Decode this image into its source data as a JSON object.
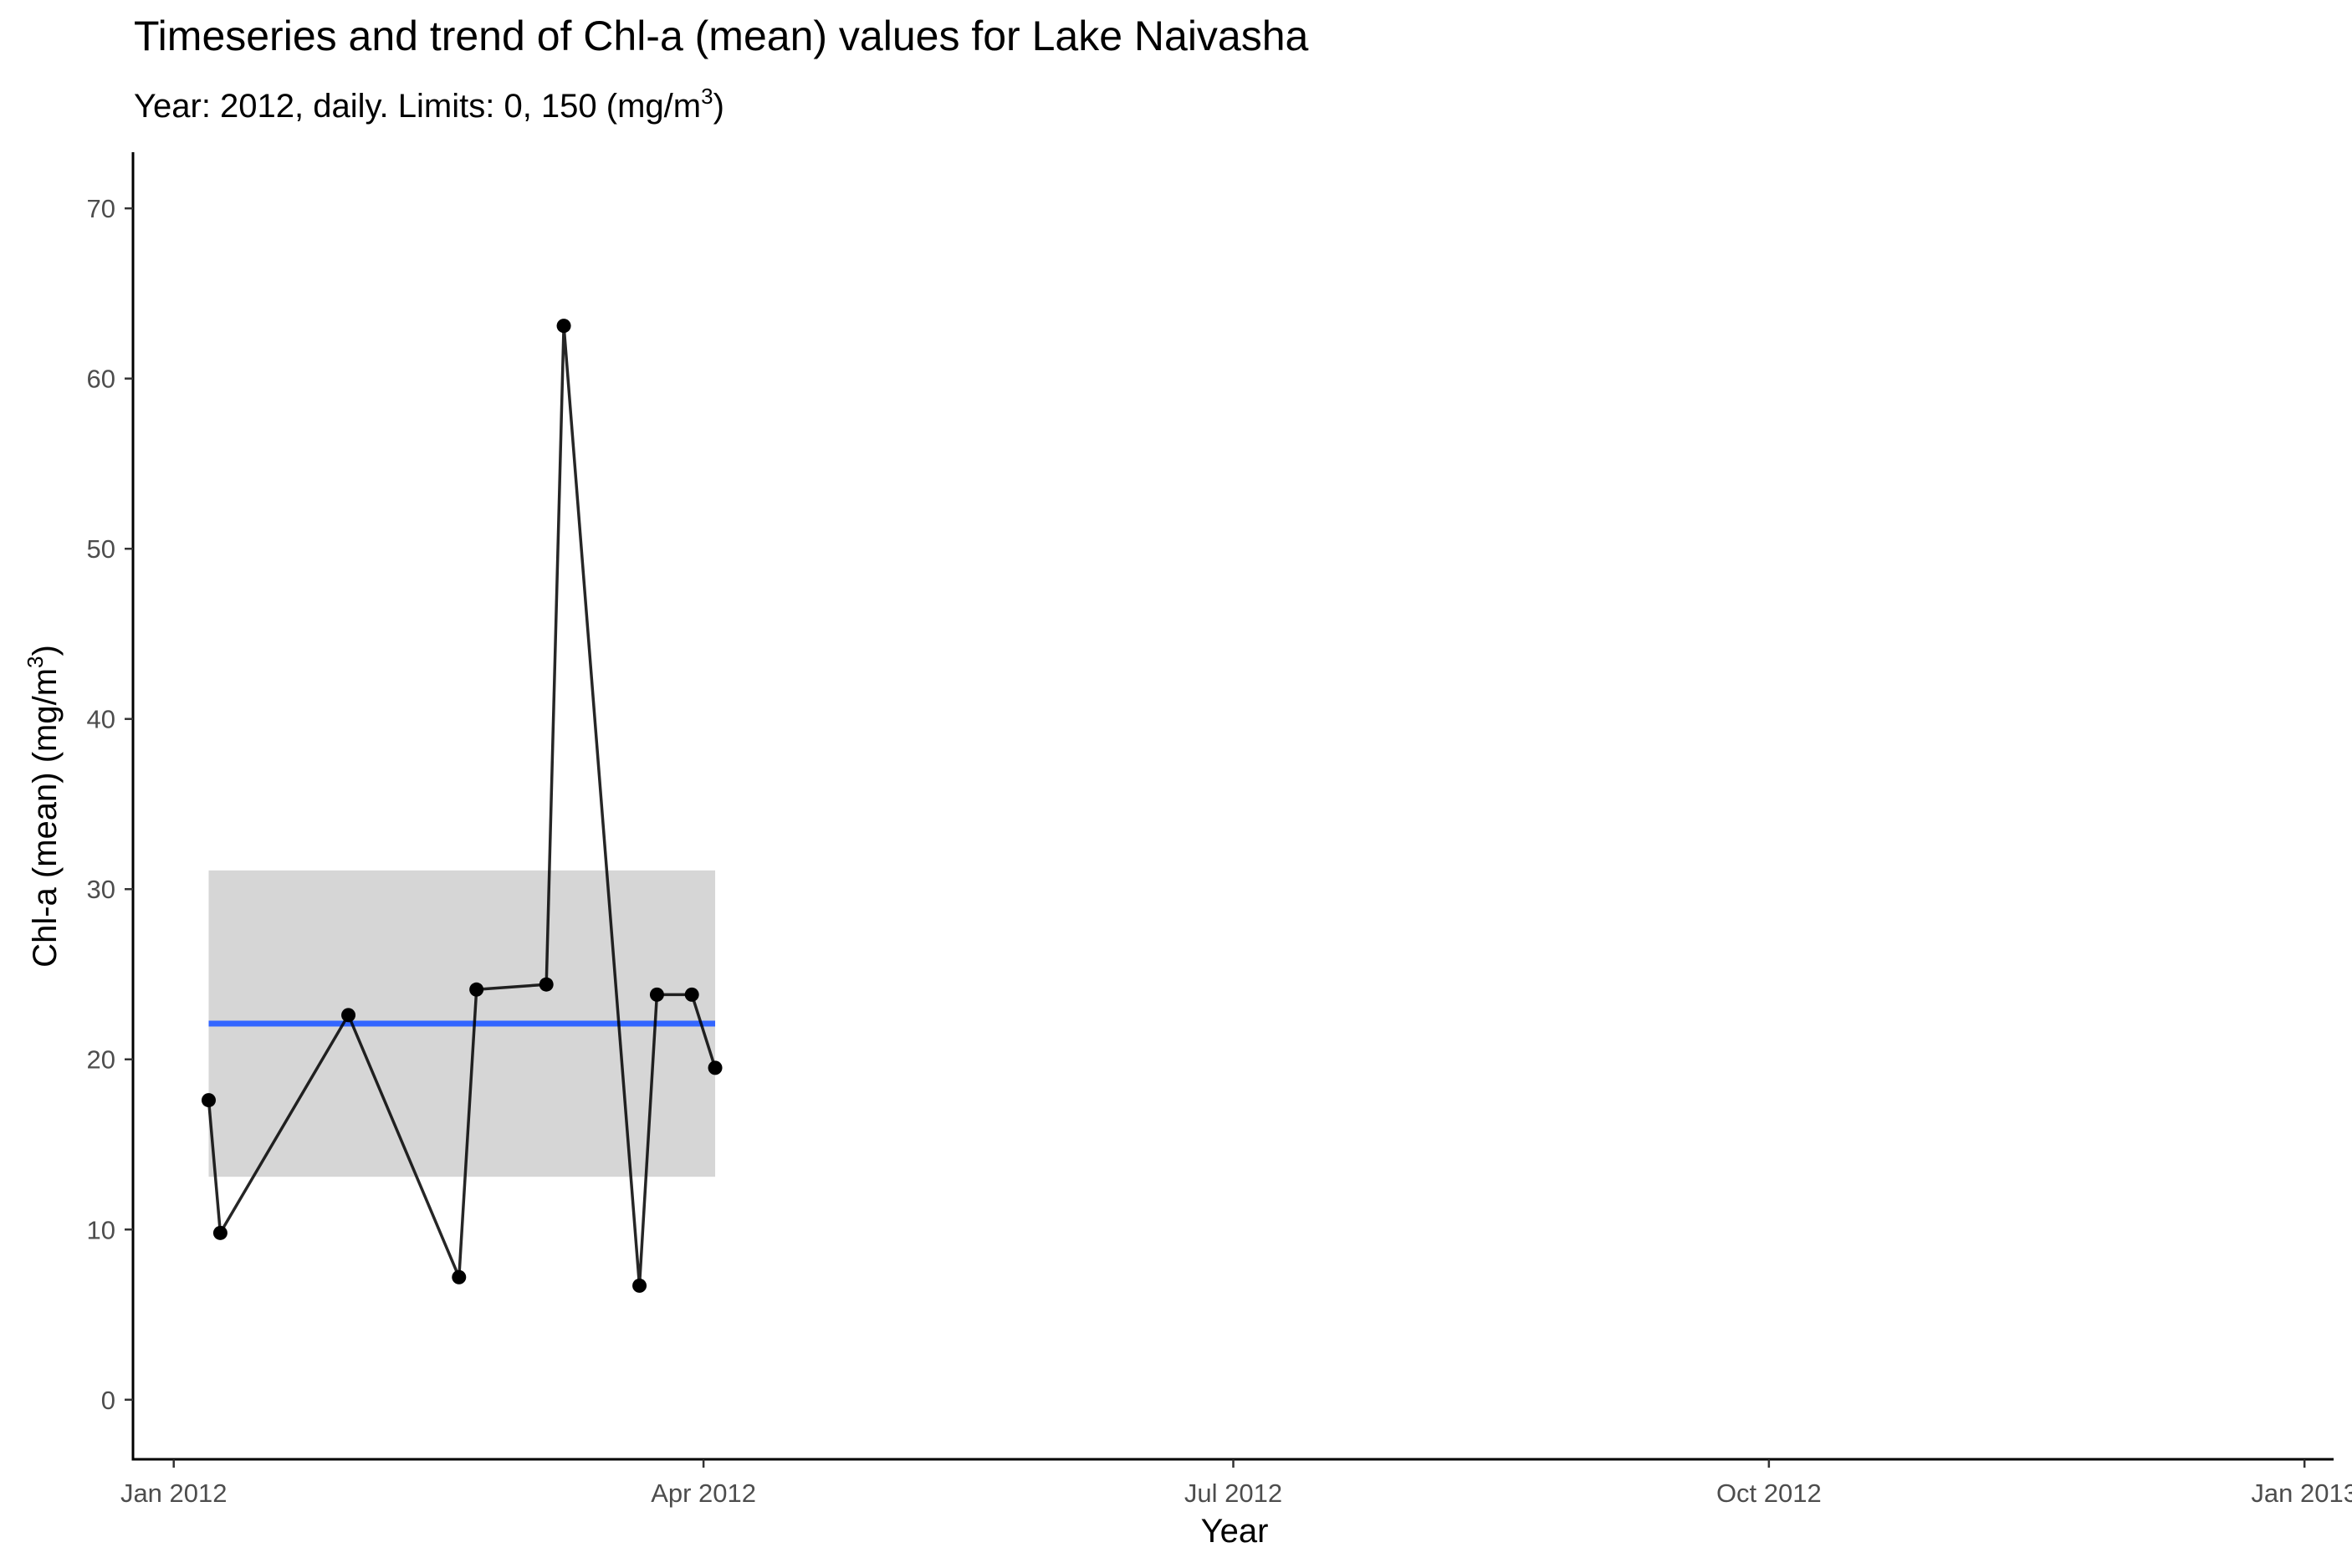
{
  "chart_data": {
    "type": "line",
    "title": "Timeseries and trend of Chl-a (mean) values for Lake Naivasha",
    "subtitle": {
      "prefix": "Year: 2012, daily. Limits: 0, 150 (mg/m",
      "sup": "3",
      "suffix": ")"
    },
    "xlabel": "Year",
    "ylabel": {
      "prefix": "Chl-a (mean) (mg/m",
      "sup": "3",
      "suffix": ")"
    },
    "xlim": [
      "2011-12-25",
      "2013-01-06"
    ],
    "ylim": [
      -3.5,
      73.3
    ],
    "x_ticks": [
      {
        "date": "2012-01-01",
        "label": "Jan 2012"
      },
      {
        "date": "2012-04-01",
        "label": "Apr 2012"
      },
      {
        "date": "2012-07-01",
        "label": "Jul 2012"
      },
      {
        "date": "2012-10-01",
        "label": "Oct 2012"
      },
      {
        "date": "2013-01-01",
        "label": "Jan 2013"
      }
    ],
    "y_ticks": [
      0,
      10,
      20,
      30,
      40,
      50,
      60,
      70
    ],
    "grid": false,
    "series": [
      {
        "color": "#000000",
        "points": [
          {
            "x": "2012-01-07",
            "y": 17.6
          },
          {
            "x": "2012-01-09",
            "y": 9.8
          },
          {
            "x": "2012-01-31",
            "y": 22.6
          },
          {
            "x": "2012-02-19",
            "y": 7.2
          },
          {
            "x": "2012-02-22",
            "y": 24.1
          },
          {
            "x": "2012-03-05",
            "y": 24.4
          },
          {
            "x": "2012-03-08",
            "y": 63.1
          },
          {
            "x": "2012-03-21",
            "y": 6.7
          },
          {
            "x": "2012-03-24",
            "y": 23.8
          },
          {
            "x": "2012-03-30",
            "y": 23.8
          },
          {
            "x": "2012-04-03",
            "y": 19.5
          }
        ]
      }
    ],
    "trend": {
      "color": "#3366ff",
      "x_start": "2012-01-07",
      "x_end": "2012-04-03",
      "y": 22.1,
      "ci_lower": 13.1,
      "ci_upper": 31.1,
      "ci_color": "#d6d6d6"
    }
  }
}
